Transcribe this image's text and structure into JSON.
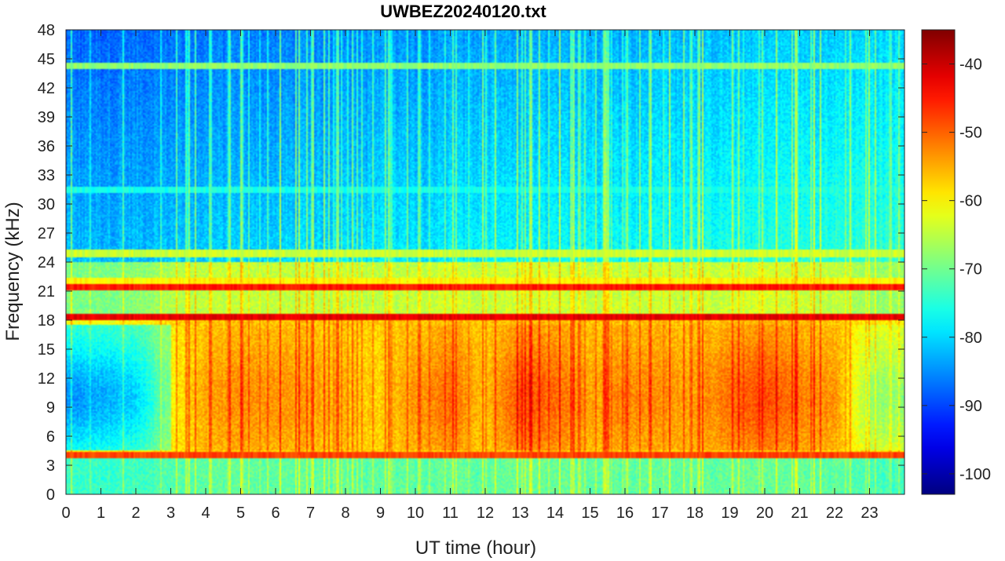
{
  "chart_data": {
    "type": "heatmap",
    "title": "UWBEZ20240120.txt",
    "xlabel": "UT time (hour)",
    "ylabel": "Frequency (kHz)",
    "xlim": [
      0,
      24
    ],
    "ylim": [
      0,
      48
    ],
    "x_ticks": [
      0,
      1,
      2,
      3,
      4,
      5,
      6,
      7,
      8,
      9,
      10,
      11,
      12,
      13,
      14,
      15,
      16,
      17,
      18,
      19,
      20,
      21,
      22,
      23
    ],
    "x_tick_labels": [
      "0",
      "1",
      "2",
      "3",
      "4",
      "5",
      "6",
      "7",
      "8",
      "9",
      "10",
      "11",
      "12",
      "13",
      "14",
      "15",
      "16",
      "17",
      "18",
      "19",
      "20",
      "21",
      "22",
      "23"
    ],
    "y_ticks": [
      0,
      3,
      6,
      9,
      12,
      15,
      18,
      21,
      24,
      27,
      30,
      33,
      36,
      39,
      42,
      45,
      48
    ],
    "y_tick_labels": [
      "0",
      "3",
      "6",
      "9",
      "12",
      "15",
      "18",
      "21",
      "24",
      "27",
      "30",
      "33",
      "36",
      "39",
      "42",
      "45",
      "48"
    ],
    "colorbar": {
      "colormap": "jet",
      "clim": [
        -103,
        -35
      ],
      "ticks": [
        -40,
        -50,
        -60,
        -70,
        -80,
        -90,
        -100
      ],
      "tick_labels": [
        "-40",
        "-50",
        "-60",
        "-70",
        "-80",
        "-90",
        "-100"
      ]
    },
    "background_level": {
      "description_bands_khz": [
        {
          "from": 0,
          "to": 4,
          "level": -72
        },
        {
          "from": 4,
          "to": 18,
          "level": -58
        },
        {
          "from": 18,
          "to": 24,
          "level": -66
        },
        {
          "from": 24,
          "to": 48,
          "level": -82
        }
      ]
    },
    "narrowband_lines_khz": [
      {
        "freq": 4.0,
        "level": -48
      },
      {
        "freq": 18.3,
        "level": -42
      },
      {
        "freq": 21.4,
        "level": -45
      },
      {
        "freq": 22.0,
        "level": -60
      },
      {
        "freq": 24.9,
        "level": -64
      },
      {
        "freq": 31.5,
        "level": -76
      },
      {
        "freq": 44.3,
        "level": -68
      }
    ],
    "activity_by_hour": [
      {
        "hour": 0,
        "level": -74
      },
      {
        "hour": 1,
        "level": -72
      },
      {
        "hour": 2,
        "level": -70
      },
      {
        "hour": 3,
        "level": -60
      },
      {
        "hour": 4,
        "level": -55
      },
      {
        "hour": 5,
        "level": -54
      },
      {
        "hour": 6,
        "level": -54
      },
      {
        "hour": 7,
        "level": -55
      },
      {
        "hour": 8,
        "level": -56
      },
      {
        "hour": 9,
        "level": -58
      },
      {
        "hour": 10,
        "level": -54
      },
      {
        "hour": 11,
        "level": -52
      },
      {
        "hour": 12,
        "level": -57
      },
      {
        "hour": 13,
        "level": -50
      },
      {
        "hour": 14,
        "level": -52
      },
      {
        "hour": 15,
        "level": -55
      },
      {
        "hour": 16,
        "level": -53
      },
      {
        "hour": 17,
        "level": -54
      },
      {
        "hour": 18,
        "level": -55
      },
      {
        "hour": 19,
        "level": -52
      },
      {
        "hour": 20,
        "level": -50
      },
      {
        "hour": 21,
        "level": -53
      },
      {
        "hour": 22,
        "level": -54
      },
      {
        "hour": 23,
        "level": -66
      }
    ]
  }
}
